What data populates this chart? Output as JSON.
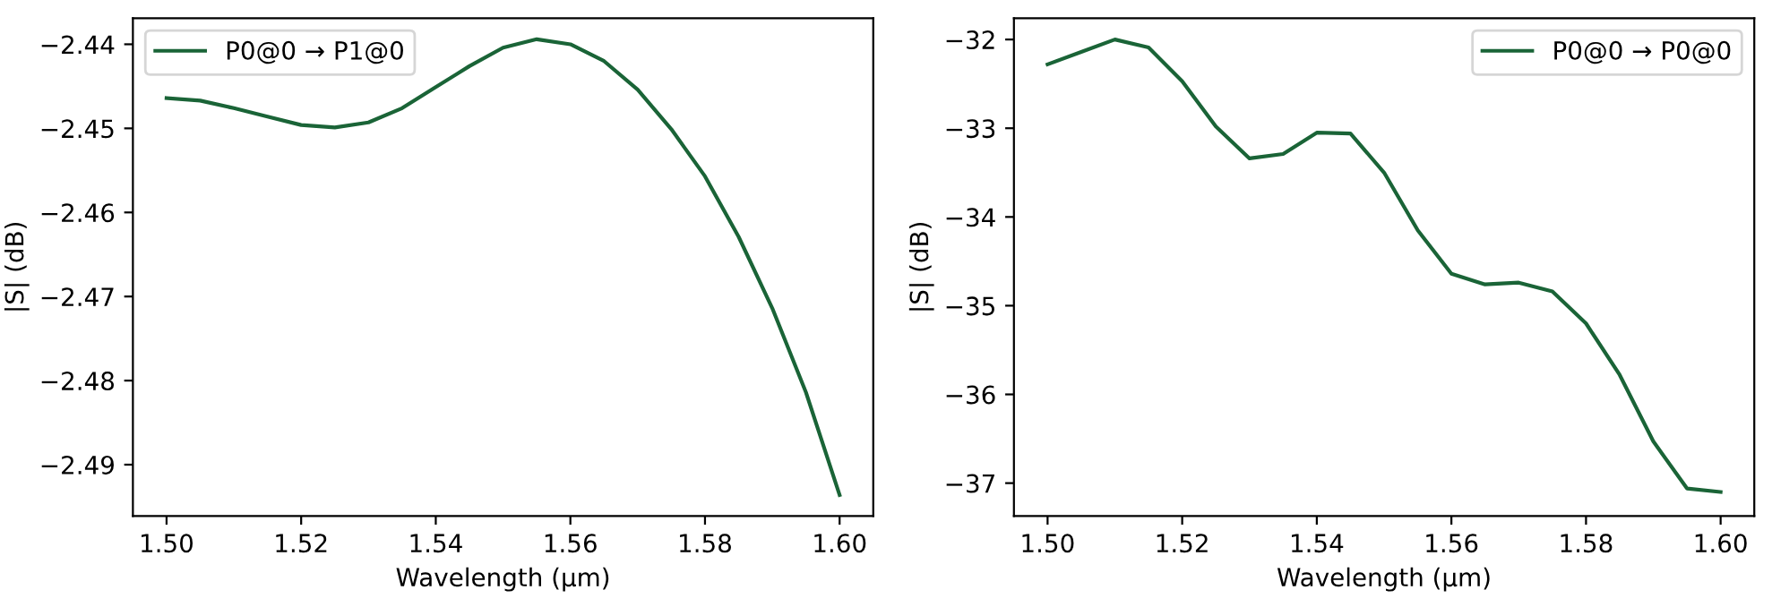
{
  "chart_data": [
    {
      "type": "line",
      "xlabel": "Wavelength (μm)",
      "ylabel": "|S| (dB)",
      "legend": "top left",
      "grid": false,
      "x": [
        1.5,
        1.505,
        1.51,
        1.515,
        1.52,
        1.525,
        1.53,
        1.535,
        1.54,
        1.545,
        1.55,
        1.555,
        1.56,
        1.565,
        1.57,
        1.575,
        1.58,
        1.585,
        1.59,
        1.595,
        1.6
      ],
      "series": [
        {
          "name": "P0@0 → P1@0",
          "color": "#1a6437",
          "values": [
            -2.4464,
            -2.4467,
            -2.4476,
            -2.4486,
            -2.4496,
            -2.4499,
            -2.4493,
            -2.4476,
            -2.4451,
            -2.4426,
            -2.4404,
            -2.4394,
            -2.44,
            -2.442,
            -2.4454,
            -2.4501,
            -2.4557,
            -2.4629,
            -2.4714,
            -2.4814,
            -2.4936
          ]
        }
      ],
      "xlim": [
        1.495,
        1.605
      ],
      "xticks": [
        {
          "value": 1.5,
          "label": "1.50"
        },
        {
          "value": 1.52,
          "label": "1.52"
        },
        {
          "value": 1.54,
          "label": "1.54"
        },
        {
          "value": 1.56,
          "label": "1.56"
        },
        {
          "value": 1.58,
          "label": "1.58"
        },
        {
          "value": 1.6,
          "label": "1.60"
        }
      ],
      "ylim": [
        -2.4961,
        -2.4369
      ],
      "yticks": [
        -2.49,
        -2.48,
        -2.47,
        -2.46,
        -2.45,
        -2.44
      ]
    },
    {
      "type": "line",
      "xlabel": "Wavelength (μm)",
      "ylabel": "|S| (dB)",
      "legend": "top right",
      "grid": false,
      "x": [
        1.5,
        1.505,
        1.51,
        1.515,
        1.52,
        1.525,
        1.53,
        1.535,
        1.54,
        1.545,
        1.55,
        1.555,
        1.56,
        1.565,
        1.57,
        1.575,
        1.58,
        1.585,
        1.59,
        1.595,
        1.6
      ],
      "series": [
        {
          "name": "P0@0 → P0@0",
          "color": "#1a6437",
          "values": [
            -32.28,
            -32.14,
            -32.0,
            -32.09,
            -32.47,
            -32.98,
            -33.34,
            -33.29,
            -33.05,
            -33.06,
            -33.5,
            -34.15,
            -34.64,
            -34.76,
            -34.74,
            -34.84,
            -35.2,
            -35.78,
            -36.53,
            -37.06,
            -37.1
          ]
        }
      ],
      "xlim": [
        1.495,
        1.605
      ],
      "xticks": [
        {
          "value": 1.5,
          "label": "1.50"
        },
        {
          "value": 1.52,
          "label": "1.52"
        },
        {
          "value": 1.54,
          "label": "1.54"
        },
        {
          "value": 1.56,
          "label": "1.56"
        },
        {
          "value": 1.58,
          "label": "1.58"
        },
        {
          "value": 1.6,
          "label": "1.60"
        }
      ],
      "ylim": [
        -37.37,
        -31.76
      ],
      "yticks": [
        -37,
        -36,
        -35,
        -34,
        -33,
        -32
      ]
    }
  ]
}
